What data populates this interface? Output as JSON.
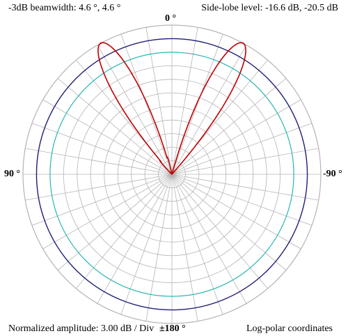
{
  "annotations": {
    "beamwidth": "-3dB beamwidth:  4.6 °, 4.6 °",
    "sidelobe": "Side-lobe level:  -16.6 dB, -20.5 dB",
    "amplitude": "Normalized amplitude: 3.00 dB / Div",
    "coordinates": "Log-polar coordinates"
  },
  "angle_labels": {
    "top": "0 °",
    "left": "90 °",
    "right": "-90 °",
    "bottom": "±180 °"
  },
  "colors": {
    "grid": "#b4b4b4",
    "outer_ring": "#1e1e78",
    "inner_ring": "#2ab7b4",
    "pattern": "#c00000"
  },
  "chart_data": {
    "type": "polar",
    "coordinate_system": "log-polar",
    "radial_units": "dB",
    "radial_division_db": 3.0,
    "radial_divisions": 11,
    "angular_step_deg": 10,
    "beamwidth_deg": [
      4.6,
      4.6
    ],
    "sidelobe_level_db": [
      -16.6,
      -20.5
    ],
    "reference_rings_db": [
      -3,
      -6
    ],
    "series": [
      {
        "values": [
          {
            "angle_deg": 28.5,
            "level_db": 0
          },
          {
            "angle_deg": -28.5,
            "level_db": 0
          }
        ]
      }
    ]
  }
}
